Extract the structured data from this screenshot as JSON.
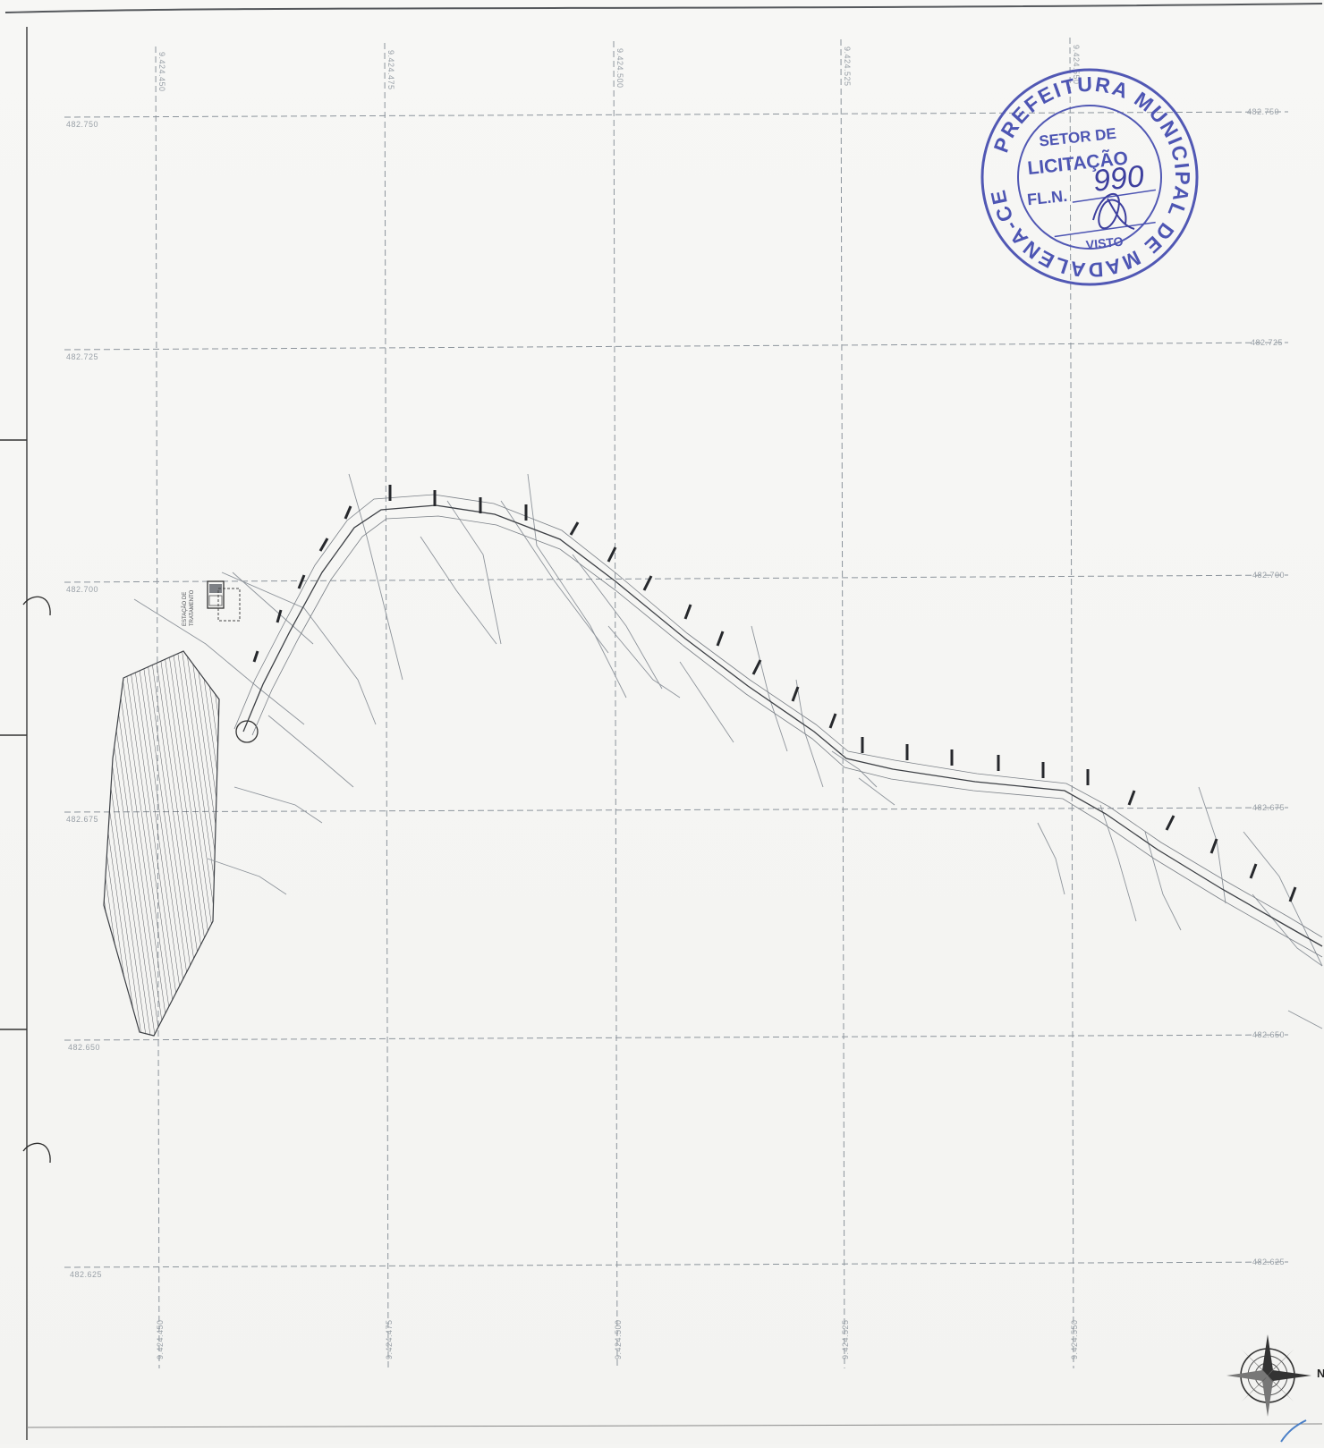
{
  "map": {
    "site_label": [
      "ESTAÇÃO DE",
      "TRATAMENTO"
    ],
    "grid_x_labels": [
      "9.424.450",
      "9.424.475",
      "9.424.500",
      "9.424.525",
      "9.424.550"
    ],
    "grid_y_labels": [
      "482.750",
      "482.725",
      "482.700",
      "482.675",
      "482.650",
      "482.625"
    ],
    "north_letter": "N"
  },
  "stamp": {
    "outer_text": "PREFEITURA MUNICIPAL DE MADALENA-CE",
    "line1": "SETOR DE",
    "line2": "LICITAÇÃO",
    "fl_label": "FL.N.",
    "fl_number": "990",
    "visto_label": "VISTO",
    "color": "#4d55b3"
  }
}
